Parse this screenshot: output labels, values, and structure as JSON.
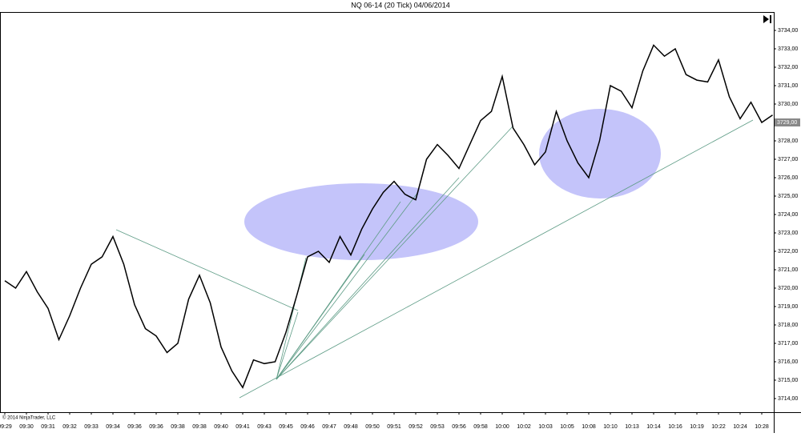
{
  "chart_data": {
    "type": "line",
    "title": "NQ 06-14 (20 Tick)  04/06/2014",
    "copyright": "© 2014 NinjaTrader, LLC",
    "color": "#000000",
    "grid": false,
    "categories": [
      "09:29",
      null,
      "09:30",
      null,
      "09:31",
      null,
      "09:32",
      null,
      "09:33",
      null,
      "09:34",
      null,
      "09:36",
      null,
      "09:36",
      null,
      "09:38",
      null,
      "09:38",
      null,
      "09:40",
      null,
      "09:41",
      null,
      "09:43",
      null,
      "09:45",
      null,
      "09:46",
      null,
      "09:47",
      null,
      "09:48",
      null,
      "09:50",
      null,
      "09:51",
      null,
      "09:52",
      null,
      "09:53",
      null,
      "09:56",
      null,
      "09:58",
      null,
      "10:00",
      null,
      "10:02",
      null,
      "10:03",
      null,
      "10:05",
      null,
      "10:08",
      null,
      "10:10",
      null,
      "10:13",
      null,
      "10:14",
      null,
      "10:16",
      null,
      "10:19",
      null,
      "10:22",
      null,
      "10:24",
      null,
      "10:28",
      null
    ],
    "values": [
      3720.4,
      3720,
      3720.9,
      3719.8,
      3718.9,
      3717.2,
      3718.5,
      3720,
      3721.3,
      3721.7,
      3722.8,
      3721.3,
      3719.1,
      3717.8,
      3717.4,
      3716.5,
      3717,
      3719.4,
      3720.7,
      3719.2,
      3716.8,
      3715.5,
      3714.6,
      3716.1,
      3715.9,
      3716,
      3717.6,
      3719.6,
      3721.7,
      3722,
      3721.4,
      3722.8,
      3721.8,
      3723.2,
      3724.3,
      3725.2,
      3725.8,
      3725.1,
      3724.8,
      3727,
      3727.8,
      3727.2,
      3726.5,
      3727.8,
      3729.1,
      3729.6,
      3731.5,
      3728.7,
      3727.8,
      3726.7,
      3727.4,
      3729.6,
      3728,
      3726.8,
      3726,
      3728,
      3731,
      3730.7,
      3729.8,
      3731.8,
      3733.2,
      3732.6,
      3733,
      3731.6,
      3731.3,
      3731.2,
      3732.4,
      3730.4,
      3729.2,
      3730.1,
      3729,
      3729.4
    ],
    "ylim": [
      3713.26,
      3735
    ],
    "yticks": [
      {
        "value": 3714,
        "label": "3714,00"
      },
      {
        "value": 3715,
        "label": "3715,00"
      },
      {
        "value": 3716,
        "label": "3716,00"
      },
      {
        "value": 3717,
        "label": "3717,00"
      },
      {
        "value": 3718,
        "label": "3718,00"
      },
      {
        "value": 3719,
        "label": "3719,00"
      },
      {
        "value": 3720,
        "label": "3720,00"
      },
      {
        "value": 3721,
        "label": "3721,00"
      },
      {
        "value": 3722,
        "label": "3722,00"
      },
      {
        "value": 3723,
        "label": "3723,00"
      },
      {
        "value": 3724,
        "label": "3724,00"
      },
      {
        "value": 3725,
        "label": "3725,00"
      },
      {
        "value": 3726,
        "label": "3726,00"
      },
      {
        "value": 3727,
        "label": "3727,00"
      },
      {
        "value": 3728,
        "label": "3728,00"
      },
      {
        "value": 3729,
        "label": "3729,00"
      },
      {
        "value": 3730,
        "label": "3730,00"
      },
      {
        "value": 3731,
        "label": "3731,00"
      },
      {
        "value": 3732,
        "label": "3732,00"
      },
      {
        "value": 3733,
        "label": "3733,00"
      },
      {
        "value": 3734,
        "label": "3734,00"
      }
    ],
    "last_price": {
      "value": 3729,
      "label": "3729,00"
    }
  }
}
